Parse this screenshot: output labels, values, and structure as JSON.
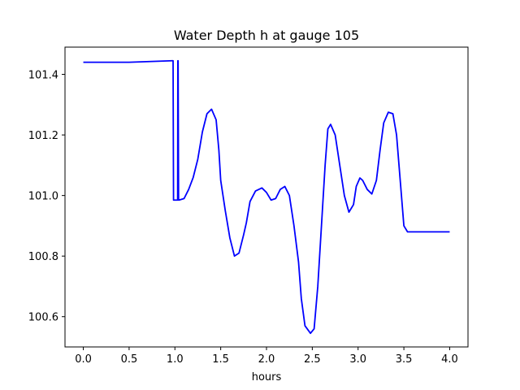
{
  "chart_data": {
    "type": "line",
    "title": "Water Depth h at gauge 105",
    "xlabel": "hours",
    "ylabel": "",
    "xlim": [
      -0.2,
      4.2
    ],
    "ylim": [
      100.5,
      101.49
    ],
    "grid": false,
    "legend": "none",
    "x_ticks": [
      0.0,
      0.5,
      1.0,
      1.5,
      2.0,
      2.5,
      3.0,
      3.5,
      4.0
    ],
    "x_tick_labels": [
      "0.0",
      "0.5",
      "1.0",
      "1.5",
      "2.0",
      "2.5",
      "3.0",
      "3.5",
      "4.0"
    ],
    "y_ticks": [
      100.6,
      100.8,
      101.0,
      101.2,
      101.4
    ],
    "y_tick_labels": [
      "100.6",
      "100.8",
      "101.0",
      "101.2",
      "101.4"
    ],
    "series": [
      {
        "color": "#0000ff",
        "x": [
          0.0,
          0.5,
          0.97,
          0.98,
          0.985,
          1.03,
          1.032,
          1.035,
          1.04,
          1.042,
          1.045,
          1.1,
          1.15,
          1.2,
          1.25,
          1.3,
          1.35,
          1.4,
          1.45,
          1.48,
          1.5,
          1.55,
          1.6,
          1.65,
          1.7,
          1.75,
          1.78,
          1.82,
          1.88,
          1.95,
          2.0,
          2.05,
          2.1,
          2.15,
          2.2,
          2.25,
          2.3,
          2.35,
          2.38,
          2.42,
          2.48,
          2.52,
          2.56,
          2.6,
          2.64,
          2.67,
          2.7,
          2.75,
          2.8,
          2.85,
          2.9,
          2.95,
          2.98,
          3.02,
          3.05,
          3.1,
          3.15,
          3.2,
          3.24,
          3.28,
          3.33,
          3.38,
          3.42,
          3.46,
          3.5,
          3.54,
          3.58,
          3.62,
          3.66,
          3.7,
          3.75,
          3.8,
          3.84,
          3.88,
          3.92,
          3.96,
          4.0
        ],
        "y": [
          101.44,
          101.44,
          101.445,
          101.445,
          100.985,
          100.985,
          101.445,
          101.445,
          100.985,
          100.985,
          100.985,
          100.99,
          101.02,
          101.06,
          101.12,
          101.21,
          101.27,
          101.285,
          101.25,
          101.15,
          101.05,
          100.95,
          100.86,
          100.8,
          100.81,
          100.87,
          100.91,
          100.98,
          101.015,
          101.025,
          101.01,
          100.985,
          100.99,
          101.02,
          101.03,
          101.0,
          100.9,
          100.78,
          100.66,
          100.57,
          100.545,
          100.56,
          100.7,
          100.9,
          101.1,
          101.22,
          101.235,
          101.2,
          101.1,
          101.0,
          100.945,
          100.97,
          101.03,
          101.058,
          101.05,
          101.02,
          101.005,
          101.05,
          101.15,
          101.24,
          101.275,
          101.27,
          101.2,
          101.05,
          100.9,
          100.88,
          100.88,
          100.88,
          100.88,
          100.88,
          100.88,
          100.88,
          100.88,
          100.88,
          100.88,
          100.88,
          100.88
        ]
      }
    ]
  }
}
